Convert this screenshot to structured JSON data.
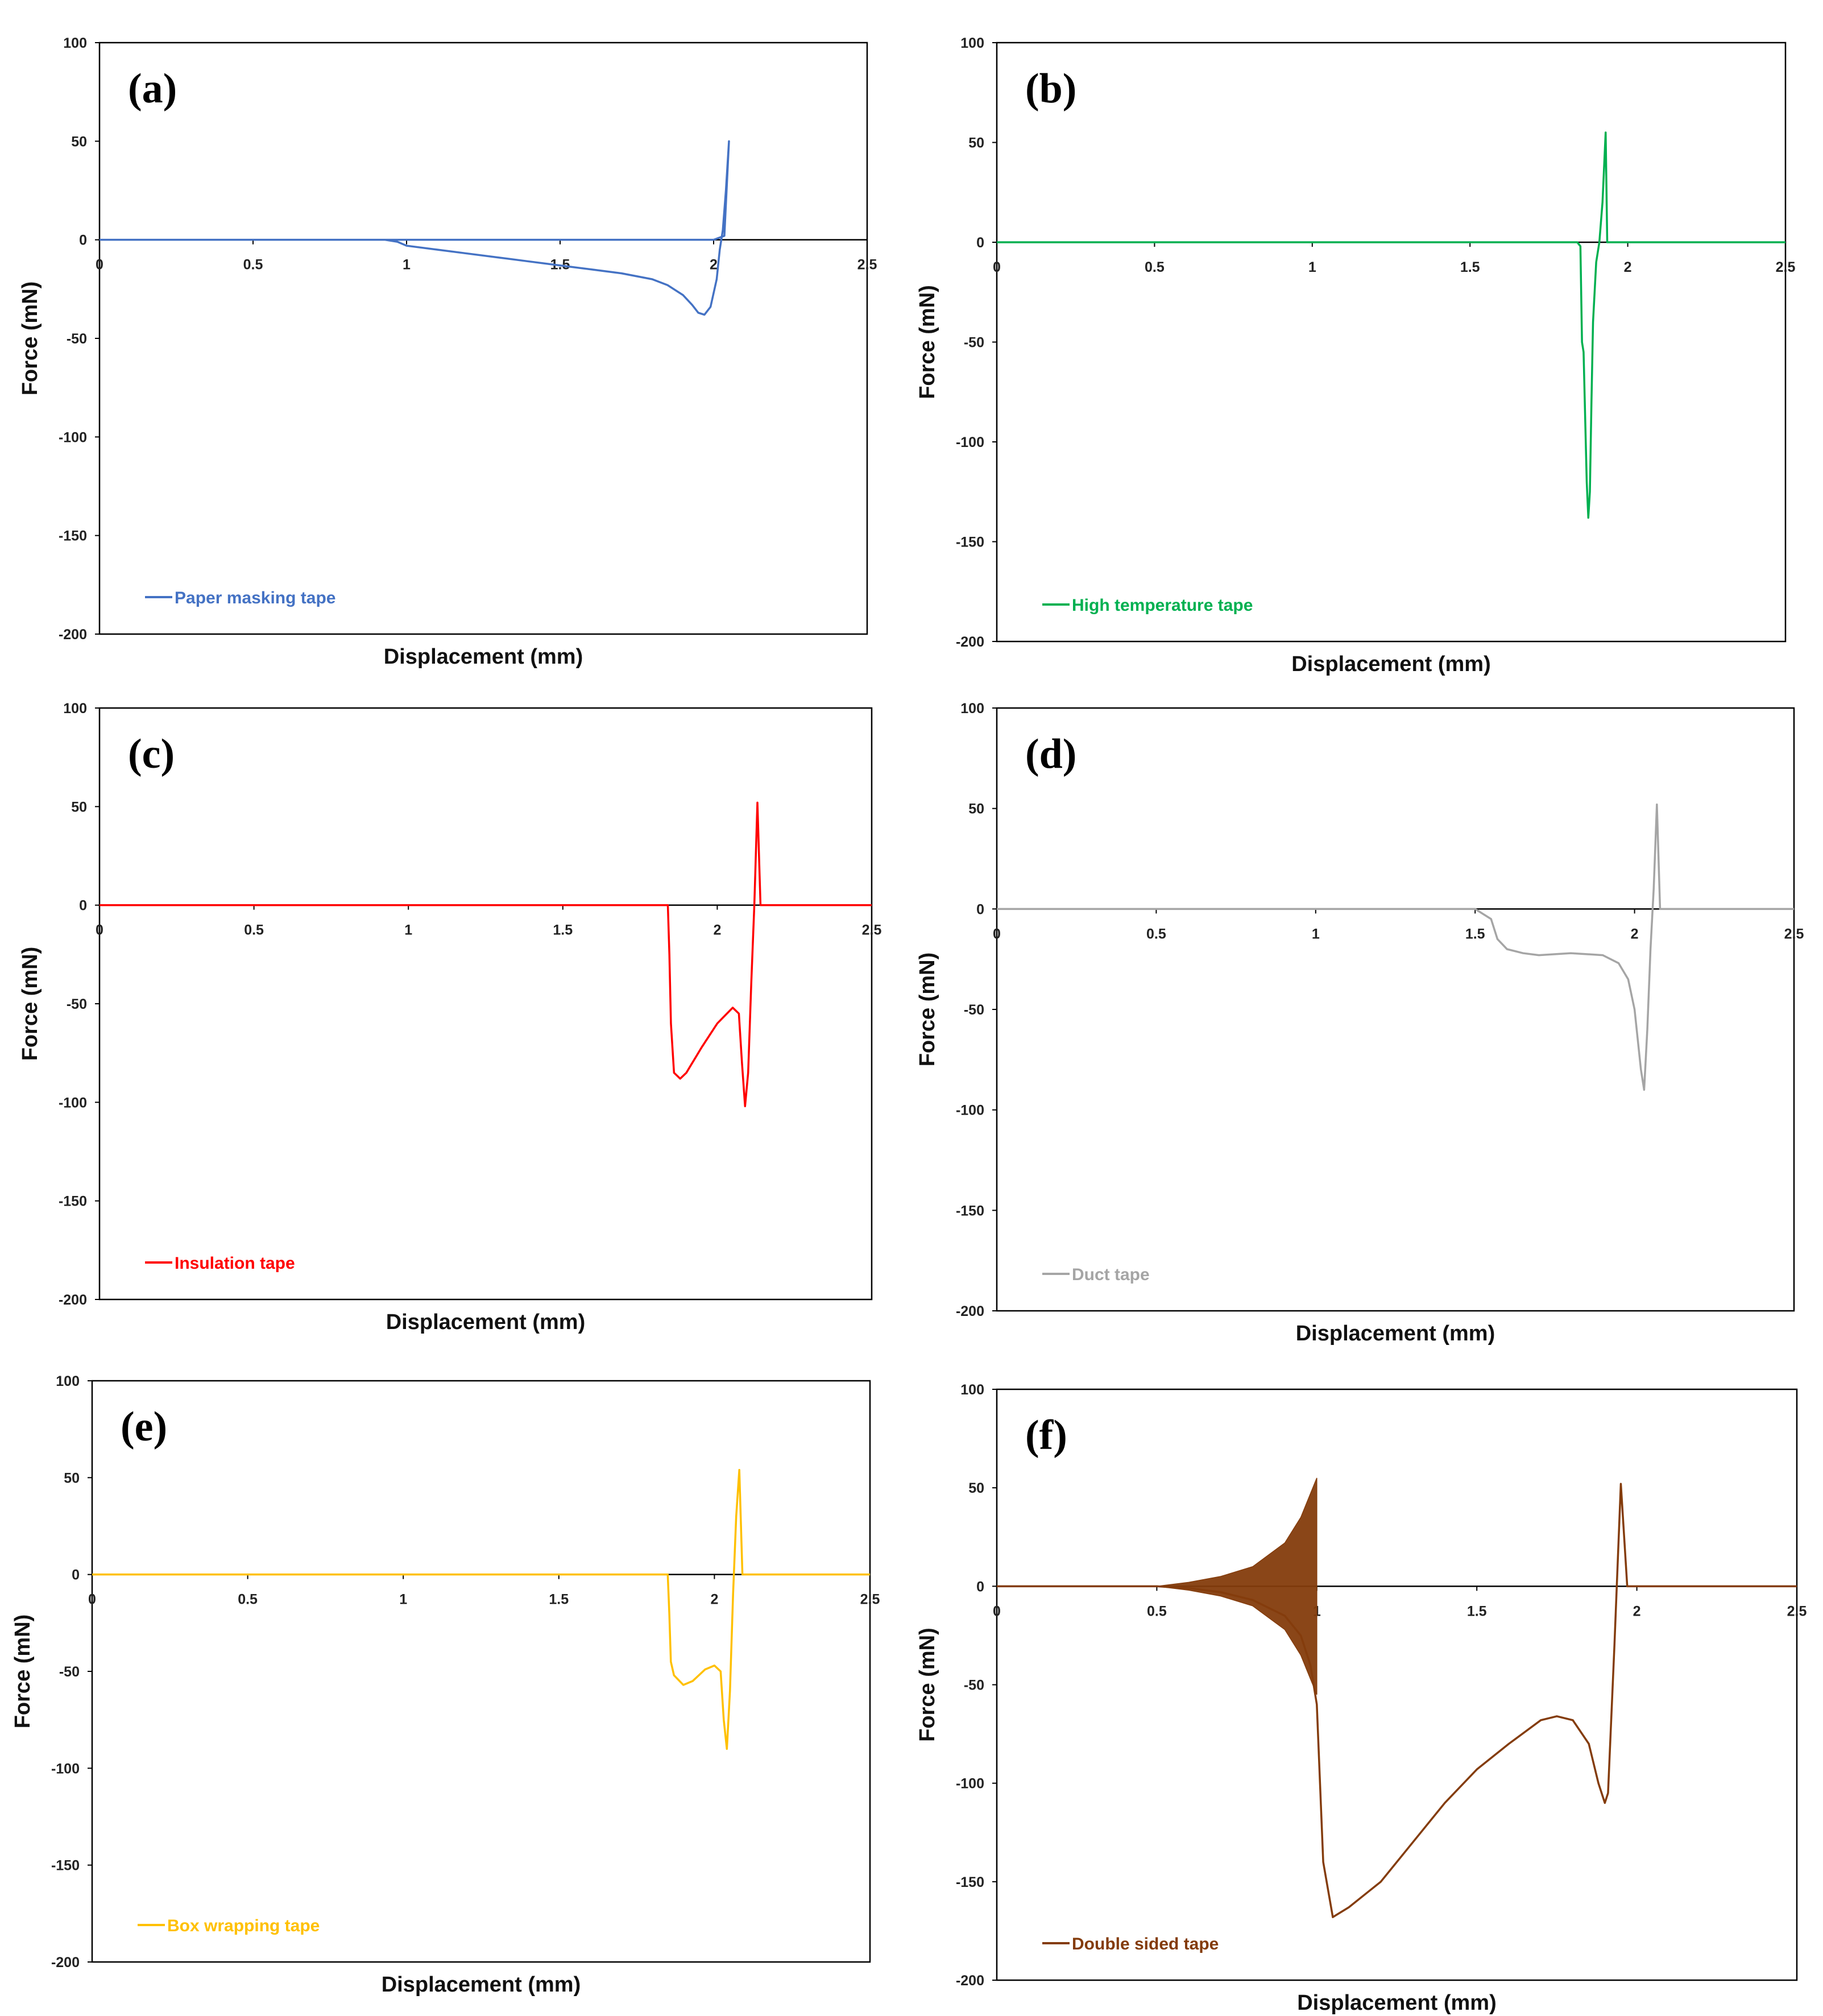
{
  "chart_data": [
    {
      "type": "line",
      "panel_label": "(a)",
      "series_name": "Paper masking tape",
      "color": "#4472c4",
      "xlabel": "Displacement (mm)",
      "ylabel": "Force (mN)",
      "xlim": [
        0,
        2.5
      ],
      "ylim": [
        -200,
        100
      ],
      "xticks": [
        "0",
        "0.5",
        "1",
        "1.5",
        "2",
        "2.5"
      ],
      "yticks": [
        "100",
        "50",
        "0",
        "-50",
        "-100",
        "-150",
        "-200"
      ],
      "x": [
        0,
        0.5,
        0.9,
        0.93,
        0.97,
        1.0,
        1.1,
        1.2,
        1.3,
        1.4,
        1.5,
        1.6,
        1.7,
        1.8,
        1.85,
        1.9,
        1.93,
        1.95,
        1.97,
        1.99,
        2.01,
        2.02,
        2.03,
        2.04,
        2.05,
        2.035,
        2.0,
        1.5,
        1.0,
        0.5,
        0
      ],
      "y": [
        0,
        0,
        0,
        0,
        -1,
        -3,
        -5,
        -7,
        -9,
        -11,
        -13,
        -15,
        -17,
        -20,
        -23,
        -28,
        -33,
        -37,
        -38,
        -34,
        -20,
        -5,
        5,
        25,
        50,
        2,
        0,
        0,
        0,
        0,
        0
      ]
    },
    {
      "type": "line",
      "panel_label": "(b)",
      "series_name": "High temperature tape",
      "color": "#00b050",
      "xlabel": "Displacement (mm)",
      "ylabel": "Force (mN)",
      "xlim": [
        0,
        2.5
      ],
      "ylim": [
        -200,
        100
      ],
      "xticks": [
        "0",
        "0.5",
        "1",
        "1.5",
        "2",
        "2.5"
      ],
      "yticks": [
        "100",
        "50",
        "0",
        "-50",
        "-100",
        "-150",
        "-200"
      ],
      "x": [
        0,
        0.5,
        1.0,
        1.5,
        1.8,
        1.84,
        1.85,
        1.855,
        1.86,
        1.87,
        1.875,
        1.88,
        1.885,
        1.89,
        1.9,
        1.91,
        1.92,
        1.93,
        1.935,
        1.95,
        2.0,
        2.5
      ],
      "y": [
        0,
        0,
        0,
        0,
        0,
        0,
        -2,
        -50,
        -55,
        -120,
        -138,
        -125,
        -80,
        -40,
        -10,
        0,
        20,
        55,
        0,
        0,
        0,
        0
      ]
    },
    {
      "type": "line",
      "panel_label": "(c)",
      "series_name": "Insulation tape",
      "color": "#ff0000",
      "xlabel": "Displacement (mm)",
      "ylabel": "Force (mN)",
      "xlim": [
        0,
        2.5
      ],
      "ylim": [
        -200,
        100
      ],
      "xticks": [
        "0",
        "0.5",
        "1",
        "1.5",
        "2",
        "2.5"
      ],
      "yticks": [
        "100",
        "50",
        "0",
        "-50",
        "-100",
        "-150",
        "-200"
      ],
      "x": [
        0,
        0.5,
        1.0,
        1.5,
        1.84,
        1.845,
        1.85,
        1.86,
        1.88,
        1.9,
        1.95,
        2.0,
        2.05,
        2.07,
        2.08,
        2.09,
        2.1,
        2.11,
        2.12,
        2.13,
        2.14,
        2.15,
        2.5
      ],
      "y": [
        0,
        0,
        0,
        0,
        0,
        -25,
        -60,
        -85,
        -88,
        -85,
        -72,
        -60,
        -52,
        -55,
        -80,
        -102,
        -85,
        -40,
        0,
        52,
        0,
        0,
        0
      ]
    },
    {
      "type": "line",
      "panel_label": "(d)",
      "series_name": "Duct tape",
      "color": "#a5a5a5",
      "xlabel": "Displacement (mm)",
      "ylabel": "Force (mN)",
      "xlim": [
        0,
        2.5
      ],
      "ylim": [
        -200,
        100
      ],
      "xticks": [
        "0",
        "0.5",
        "1",
        "1.5",
        "2",
        "2.5"
      ],
      "yticks": [
        "100",
        "50",
        "0",
        "-50",
        "-100",
        "-150",
        "-200"
      ],
      "x": [
        0,
        0.5,
        1.0,
        1.5,
        1.55,
        1.57,
        1.6,
        1.65,
        1.7,
        1.8,
        1.9,
        1.95,
        1.98,
        2.0,
        2.02,
        2.03,
        2.04,
        2.05,
        2.06,
        2.07,
        2.08,
        2.1,
        2.5
      ],
      "y": [
        0,
        0,
        0,
        0,
        -5,
        -15,
        -20,
        -22,
        -23,
        -22,
        -23,
        -27,
        -35,
        -50,
        -80,
        -90,
        -60,
        -20,
        10,
        52,
        0,
        0,
        0
      ]
    },
    {
      "type": "line",
      "panel_label": "(e)",
      "series_name": "Box wrapping tape",
      "color": "#ffc000",
      "xlabel": "Displacement (mm)",
      "ylabel": "Force (mN)",
      "xlim": [
        0,
        2.5
      ],
      "ylim": [
        -200,
        100
      ],
      "xticks": [
        "0",
        "0.5",
        "1",
        "1.5",
        "2",
        "2.5"
      ],
      "yticks": [
        "100",
        "50",
        "0",
        "-50",
        "-100",
        "-150",
        "-200"
      ],
      "x": [
        0,
        0.5,
        1.0,
        1.5,
        1.85,
        1.855,
        1.86,
        1.87,
        1.9,
        1.93,
        1.97,
        2.0,
        2.02,
        2.03,
        2.04,
        2.05,
        2.06,
        2.07,
        2.08,
        2.09,
        2.5
      ],
      "y": [
        0,
        0,
        0,
        0,
        0,
        -20,
        -45,
        -52,
        -57,
        -55,
        -49,
        -47,
        -50,
        -75,
        -90,
        -60,
        -10,
        30,
        54,
        0,
        0
      ]
    },
    {
      "type": "line",
      "panel_label": "(f)",
      "series_name": "Double sided tape",
      "color": "#843c0c",
      "xlabel": "Displacement (mm)",
      "ylabel": "Force (mN)",
      "xlim": [
        0,
        2.5
      ],
      "ylim": [
        -200,
        100
      ],
      "xticks": [
        "0",
        "0.5",
        "1",
        "1.5",
        "2",
        "2.5"
      ],
      "yticks": [
        "100",
        "50",
        "0",
        "-50",
        "-100",
        "-150",
        "-200"
      ],
      "x": [
        0,
        0.5,
        0.6,
        0.7,
        0.8,
        0.9,
        0.95,
        0.98,
        1.0,
        1.02,
        1.05,
        1.1,
        1.2,
        1.3,
        1.4,
        1.5,
        1.6,
        1.7,
        1.75,
        1.8,
        1.85,
        1.88,
        1.9,
        1.91,
        1.93,
        1.95,
        1.97,
        2.0,
        2.5
      ],
      "y": [
        0,
        0,
        -1,
        -3,
        -7,
        -15,
        -25,
        -40,
        -60,
        -140,
        -168,
        -163,
        -150,
        -130,
        -110,
        -93,
        -80,
        -68,
        -66,
        -68,
        -80,
        -100,
        -110,
        -105,
        -30,
        52,
        0,
        0,
        0
      ],
      "oscillation_envelope": {
        "x": [
          0.5,
          0.6,
          0.7,
          0.8,
          0.9,
          0.95,
          1.0
        ],
        "amplitude": [
          0,
          2,
          5,
          10,
          22,
          35,
          55
        ]
      }
    }
  ]
}
